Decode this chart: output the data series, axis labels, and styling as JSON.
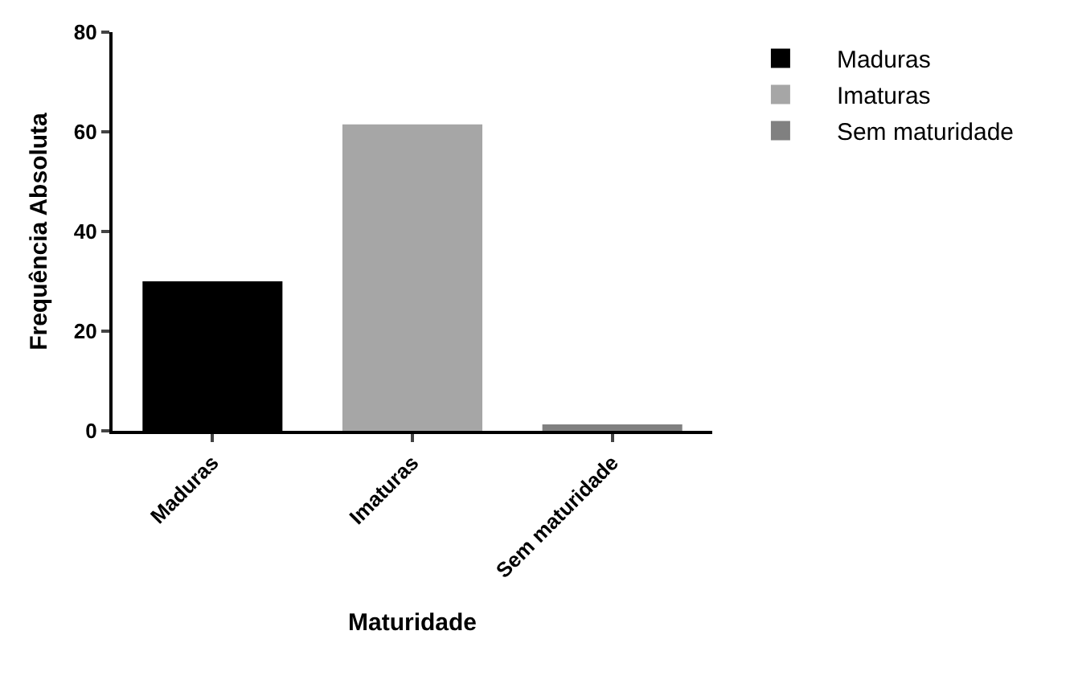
{
  "chart_data": {
    "type": "bar",
    "xlabel": "Maturidade",
    "ylabel": "Frequência Absoluta",
    "categories": [
      "Maduras",
      "Imaturas",
      "Sem maturidade"
    ],
    "series": [
      {
        "name": "Maduras",
        "color": "#000000",
        "values": [
          30,
          null,
          null
        ]
      },
      {
        "name": "Imaturas",
        "color": "#a6a6a6",
        "values": [
          null,
          61.5,
          null
        ]
      },
      {
        "name": "Sem maturidade",
        "color": "#808080",
        "values": [
          null,
          null,
          1.3
        ]
      }
    ],
    "ylim": [
      0,
      80
    ],
    "yticks": [
      0,
      20,
      40,
      60,
      80
    ],
    "grid": false,
    "legend": "top right"
  }
}
